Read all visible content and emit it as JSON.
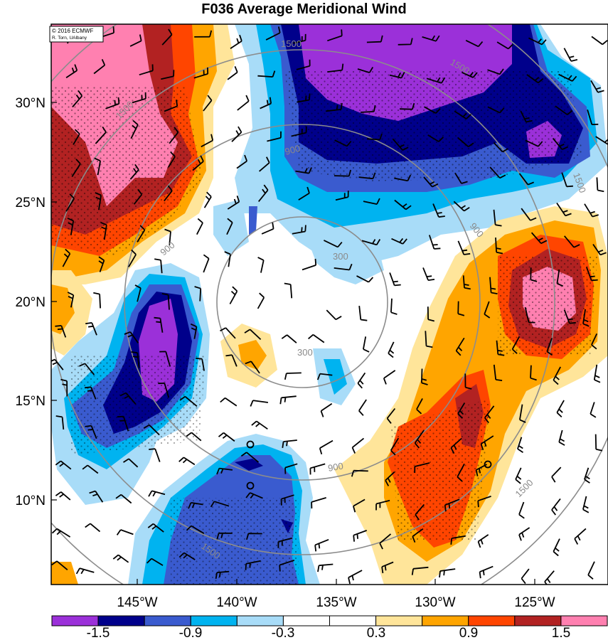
{
  "title": "F036 Average Meridional Wind",
  "credit": {
    "line1": "© 2016 ECMWF",
    "line2": "R. Torn, UAlbany"
  },
  "axes": {
    "lat_labels": [
      "30°N",
      "25°N",
      "20°N",
      "15°N",
      "10°N"
    ],
    "lon_labels": [
      "145°W",
      "140°W",
      "135°W",
      "130°W",
      "125°W"
    ]
  },
  "colorbar": {
    "colors": [
      "#9b30d9",
      "#00008b",
      "#3a5bcf",
      "#00b3f0",
      "#a8dcf8",
      "#ffffff",
      "#ffffff",
      "#ffe59a",
      "#ffa500",
      "#ff4500",
      "#b22222",
      "#ff80b0"
    ],
    "labels": [
      "-1.5",
      "-0.9",
      "-0.3",
      "0.3",
      "0.9",
      "1.5"
    ]
  },
  "ring_labels": [
    "300",
    "300",
    "900",
    "900",
    "900",
    "900",
    "1500",
    "1500",
    "1500",
    "1500",
    "1500",
    "1500"
  ],
  "colors": {
    "ring": "#8c8c8c",
    "barb": "#000000"
  }
}
